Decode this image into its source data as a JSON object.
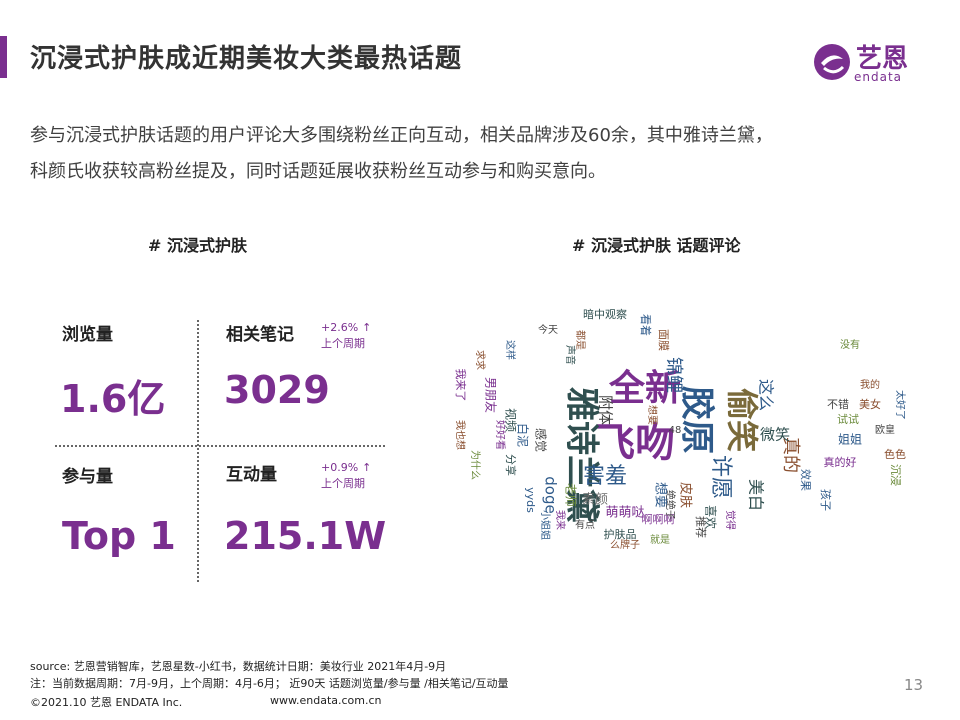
{
  "header": {
    "title": "沉浸式护肤成近期美妆大类最热话题",
    "logo_cn": "艺恩",
    "logo_en": "endata"
  },
  "intro": {
    "line1": "参与沉浸式护肤话题的用户评论大多围绕粉丝正向互动，相关品牌涉及60余，其中雅诗兰黛，",
    "line2": "科颜氏收获较高粉丝提及，同时话题延展收获粉丝互动参与和购买意向。"
  },
  "left_section": {
    "heading": "# 沉浸式护肤",
    "metrics": [
      {
        "label": "浏览量",
        "value": "1.6亿"
      },
      {
        "label": "相关笔记",
        "value": "3029",
        "delta": "+2.6%",
        "delta_note": "上个周期",
        "delta_dir": "up"
      },
      {
        "label": "参与量",
        "value": "Top 1"
      },
      {
        "label": "互动量",
        "value": "215.1W",
        "delta": "+0.9%",
        "delta_note": "上个周期",
        "delta_dir": "up"
      }
    ]
  },
  "right_section": {
    "heading": "# 沉浸式护肤 话题评论",
    "word_cloud": [
      {
        "text": "飞吻",
        "size": 40,
        "color": "#7a2f8f"
      },
      {
        "text": "全新",
        "size": 36,
        "color": "#7a2f8f"
      },
      {
        "text": "雅诗兰黛",
        "size": 34,
        "color": "#2f4f4f"
      },
      {
        "text": "胶原",
        "size": 34,
        "color": "#2e5a8a"
      },
      {
        "text": "偷笑",
        "size": 32,
        "color": "#7a6a3a"
      },
      {
        "text": "害羞",
        "size": 22,
        "color": "#2e5a8a"
      },
      {
        "text": "许愿",
        "size": 22,
        "color": "#2e5a8a"
      },
      {
        "text": "锦鲤",
        "size": 18,
        "color": "#2e5a8a"
      },
      {
        "text": "真的",
        "size": 18,
        "color": "#8a4f2f"
      },
      {
        "text": "美白",
        "size": 16,
        "color": "#2f4f4f"
      },
      {
        "text": "这么",
        "size": 16,
        "color": "#2e5a8a"
      },
      {
        "text": "微笑",
        "size": 15,
        "color": "#2f4f4f"
      },
      {
        "text": "附体",
        "size": 15,
        "color": "#444"
      },
      {
        "text": "萌萌哒",
        "size": 13,
        "color": "#7a2f8f"
      },
      {
        "text": "素颜",
        "size": 13,
        "color": "#6a6a6a"
      },
      {
        "text": "想要",
        "size": 13,
        "color": "#2e5a8a"
      },
      {
        "text": "皮肤",
        "size": 13,
        "color": "#8a4f2f"
      },
      {
        "text": "喜欢",
        "size": 12,
        "color": "#2f4f4f"
      },
      {
        "text": "doge",
        "size": 15,
        "color": "#2e5a8a"
      },
      {
        "text": "老师",
        "size": 12,
        "color": "#6a8a3a"
      },
      {
        "text": "感觉",
        "size": 12,
        "color": "#444"
      },
      {
        "text": "白泥",
        "size": 12,
        "color": "#2e5a8a"
      },
      {
        "text": "视频",
        "size": 12,
        "color": "#2f4f4f"
      },
      {
        "text": "男朋友",
        "size": 12,
        "color": "#7a2f8f"
      },
      {
        "text": "暗中观察",
        "size": 11,
        "color": "#2f4f4f"
      },
      {
        "text": "看着",
        "size": 11,
        "color": "#2e5a8a"
      },
      {
        "text": "面膜",
        "size": 11,
        "color": "#8a4f2f"
      },
      {
        "text": "我来了",
        "size": 11,
        "color": "#7a2f8f"
      },
      {
        "text": "推荐",
        "size": 11,
        "color": "#444"
      },
      {
        "text": "啊啊啊",
        "size": 11,
        "color": "#7a2f8f"
      },
      {
        "text": "护肤品",
        "size": 11,
        "color": "#2f4f4f"
      },
      {
        "text": "姐姐",
        "size": 12,
        "color": "#2e5a8a"
      },
      {
        "text": "试试",
        "size": 11,
        "color": "#6a8a3a"
      },
      {
        "text": "不错",
        "size": 11,
        "color": "#444"
      },
      {
        "text": "美女",
        "size": 11,
        "color": "#8a4f2f"
      },
      {
        "text": "真的好",
        "size": 11,
        "color": "#7a2f8f"
      },
      {
        "text": "孩子",
        "size": 11,
        "color": "#2e5a8a"
      },
      {
        "text": "色色",
        "size": 11,
        "color": "#8a4f2f"
      },
      {
        "text": "沉浸",
        "size": 11,
        "color": "#6a8a3a"
      },
      {
        "text": "分享",
        "size": 11,
        "color": "#2f4f4f"
      },
      {
        "text": "yyds",
        "size": 11,
        "color": "#2e5a8a"
      },
      {
        "text": "今天",
        "size": 10,
        "color": "#444"
      },
      {
        "text": "求求",
        "size": 10,
        "color": "#8a4f2f"
      },
      {
        "text": "有点",
        "size": 10,
        "color": "#444"
      },
      {
        "text": "么牌子",
        "size": 10,
        "color": "#8a4f2f"
      },
      {
        "text": "就是",
        "size": 10,
        "color": "#6a8a3a"
      },
      {
        "text": "觉得",
        "size": 10,
        "color": "#7a2f8f"
      },
      {
        "text": "效果",
        "size": 11,
        "color": "#2e5a8a"
      },
      {
        "text": "我的",
        "size": 10,
        "color": "#8a4f2f"
      },
      {
        "text": "太好了",
        "size": 10,
        "color": "#2e5a8a"
      },
      {
        "text": "没有",
        "size": 10,
        "color": "#6a8a3a"
      },
      {
        "text": "欧皇",
        "size": 10,
        "color": "#444"
      },
      {
        "text": "我也想",
        "size": 10,
        "color": "#8a4f2f"
      },
      {
        "text": "为什么",
        "size": 10,
        "color": "#6a8a3a"
      },
      {
        "text": "好好看",
        "size": 10,
        "color": "#7a2f8f"
      },
      {
        "text": "这样",
        "size": 10,
        "color": "#2e5a8a"
      },
      {
        "text": "都是",
        "size": 10,
        "color": "#8a4f2f"
      },
      {
        "text": "声音",
        "size": 10,
        "color": "#2f4f4f"
      },
      {
        "text": "我来",
        "size": 10,
        "color": "#7a2f8f"
      },
      {
        "text": "小姐姐",
        "size": 10,
        "color": "#2e5a8a"
      },
      {
        "text": "绝绝子",
        "size": 10,
        "color": "#444"
      },
      {
        "text": "想要",
        "size": 10,
        "color": "#8a4f2f"
      },
      {
        "text": "48",
        "size": 10,
        "color": "#444"
      }
    ]
  },
  "footer": {
    "source": "source: 艺恩营销智库，艺恩星数-小红书，数据统计日期：美妆行业 2021年4月-9月",
    "note": "注：当前数据周期：7月-9月，上个周期：4月-6月； 近90天 话题浏览量/参与量 /相关笔记/互动量",
    "copyright": "©2021.10 艺恩 ENDATA Inc.",
    "website": "www.endata.com.cn",
    "page": "13"
  },
  "colors": {
    "accent": "#7a2f8f"
  }
}
